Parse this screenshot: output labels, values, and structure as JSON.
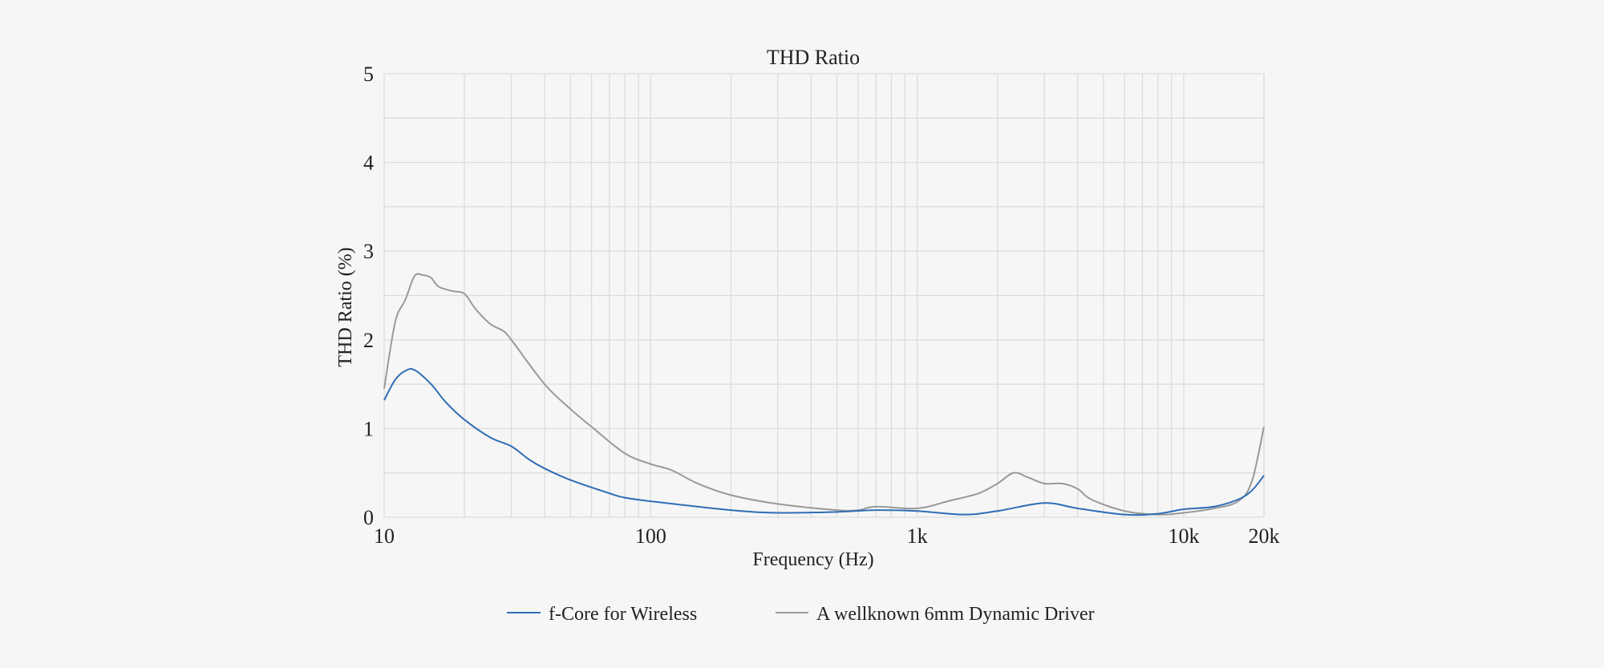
{
  "chart_data": {
    "type": "line",
    "title": "THD Ratio",
    "xlabel": "Frequency (Hz)",
    "ylabel": "THD Ratio (%)",
    "xscale": "log",
    "xlim": [
      10,
      20000
    ],
    "ylim": [
      0,
      5
    ],
    "xticks": [
      {
        "v": 10,
        "label": "10"
      },
      {
        "v": 100,
        "label": "100"
      },
      {
        "v": 1000,
        "label": "1k"
      },
      {
        "v": 10000,
        "label": "10k"
      },
      {
        "v": 20000,
        "label": "20k"
      }
    ],
    "yticks": [
      {
        "v": 0,
        "label": "0"
      },
      {
        "v": 1,
        "label": "1"
      },
      {
        "v": 2,
        "label": "2"
      },
      {
        "v": 3,
        "label": "3"
      },
      {
        "v": 4,
        "label": "4"
      },
      {
        "v": 5,
        "label": "5"
      }
    ],
    "grid": true,
    "legend_position": "bottom-center",
    "series": [
      {
        "name": "f-Core for Wireless",
        "color": "#2f6db5",
        "x": [
          10,
          11,
          12,
          13,
          15,
          17,
          20,
          25,
          30,
          35,
          40,
          50,
          70,
          80,
          100,
          200,
          300,
          500,
          700,
          1000,
          1500,
          2000,
          3000,
          4000,
          6000,
          8000,
          10000,
          13000,
          16000,
          18000,
          20000
        ],
        "y": [
          1.32,
          1.55,
          1.65,
          1.66,
          1.5,
          1.3,
          1.1,
          0.9,
          0.8,
          0.65,
          0.55,
          0.42,
          0.27,
          0.22,
          0.18,
          0.08,
          0.05,
          0.06,
          0.08,
          0.07,
          0.03,
          0.07,
          0.16,
          0.1,
          0.03,
          0.04,
          0.09,
          0.12,
          0.2,
          0.3,
          0.47
        ]
      },
      {
        "name": "A wellknown 6mm Dynamic Driver",
        "color": "#999999",
        "x": [
          10,
          11,
          12,
          13,
          14,
          15,
          16,
          18,
          20,
          22,
          25,
          28,
          30,
          40,
          50,
          60,
          80,
          100,
          120,
          150,
          200,
          300,
          500,
          600,
          700,
          1000,
          1300,
          1700,
          2000,
          2300,
          2600,
          3000,
          3500,
          4000,
          4500,
          6000,
          8000,
          10000,
          13000,
          16000,
          18000,
          20000
        ],
        "y": [
          1.45,
          2.2,
          2.45,
          2.72,
          2.73,
          2.7,
          2.6,
          2.55,
          2.52,
          2.35,
          2.18,
          2.1,
          2.0,
          1.5,
          1.22,
          1.02,
          0.72,
          0.6,
          0.53,
          0.38,
          0.25,
          0.15,
          0.08,
          0.08,
          0.12,
          0.1,
          0.18,
          0.27,
          0.38,
          0.5,
          0.45,
          0.38,
          0.38,
          0.32,
          0.2,
          0.07,
          0.03,
          0.05,
          0.1,
          0.18,
          0.4,
          1.02
        ]
      }
    ]
  }
}
